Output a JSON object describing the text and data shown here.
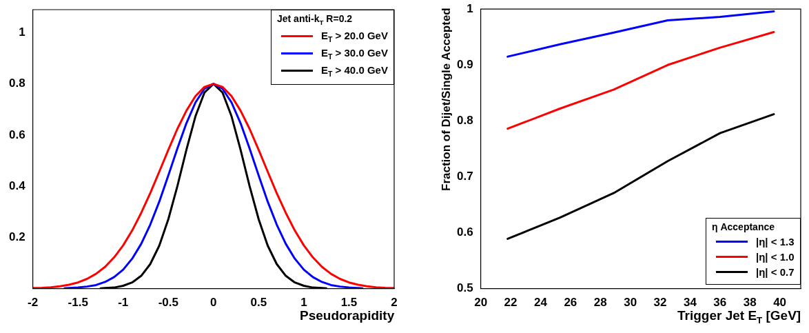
{
  "chart_data": [
    {
      "type": "line",
      "xlabel": "Pseudorapidity",
      "legend_title": "Jet anti-k$_{T}$ R=0.2",
      "legend": "top right",
      "grid": false,
      "xlim": [
        -2,
        2
      ],
      "xticks": [
        -2,
        -1.5,
        -1,
        -0.5,
        0,
        0.5,
        1,
        1.5,
        2
      ],
      "ylim": [
        0,
        1.09
      ],
      "yticks": [
        0.2,
        0.4,
        0.6,
        0.8,
        1
      ],
      "series": [
        {
          "name": "E$_{T}$ > 20.0 GeV",
          "color": "#ff0000",
          "x": [
            -2,
            -1.9,
            -1.8,
            -1.7,
            -1.6,
            -1.5,
            -1.4,
            -1.3,
            -1.2,
            -1.1,
            -1,
            -0.9,
            -0.8,
            -0.7,
            -0.6,
            -0.5,
            -0.4,
            -0.3,
            -0.2,
            -0.1,
            0,
            0.1,
            0.2,
            0.3,
            0.4,
            0.5,
            0.6,
            0.7,
            0.8,
            0.9,
            1,
            1.1,
            1.2,
            1.3,
            1.4,
            1.5,
            1.6,
            1.7,
            1.8,
            1.9,
            2
          ],
          "values": [
            0.002,
            0.003,
            0.005,
            0.009,
            0.015,
            0.024,
            0.038,
            0.058,
            0.085,
            0.122,
            0.169,
            0.227,
            0.296,
            0.373,
            0.457,
            0.542,
            0.624,
            0.695,
            0.752,
            0.788,
            0.8,
            0.788,
            0.752,
            0.695,
            0.624,
            0.542,
            0.457,
            0.373,
            0.296,
            0.227,
            0.169,
            0.122,
            0.085,
            0.058,
            0.038,
            0.024,
            0.015,
            0.009,
            0.005,
            0.003,
            0.002
          ]
        },
        {
          "name": "E$_{T}$ > 30.0 GeV",
          "color": "#0000ff",
          "x": [
            -1.65,
            -1.6,
            -1.5,
            -1.4,
            -1.3,
            -1.2,
            -1.1,
            -1,
            -0.9,
            -0.8,
            -0.7,
            -0.6,
            -0.5,
            -0.4,
            -0.3,
            -0.2,
            -0.1,
            0,
            0.1,
            0.2,
            0.3,
            0.4,
            0.5,
            0.6,
            0.7,
            0.8,
            0.9,
            1,
            1.1,
            1.2,
            1.3,
            1.4,
            1.5,
            1.6,
            1.65
          ],
          "values": [
            0.001,
            0.002,
            0.004,
            0.008,
            0.014,
            0.026,
            0.045,
            0.074,
            0.117,
            0.175,
            0.25,
            0.34,
            0.442,
            0.547,
            0.646,
            0.727,
            0.781,
            0.8,
            0.781,
            0.727,
            0.646,
            0.547,
            0.442,
            0.34,
            0.25,
            0.175,
            0.117,
            0.074,
            0.045,
            0.026,
            0.014,
            0.008,
            0.004,
            0.002,
            0.001
          ]
        },
        {
          "name": "E$_{T}$ > 40.0 GeV",
          "color": "#000000",
          "x": [
            -1.25,
            -1.2,
            -1.1,
            -1,
            -0.9,
            -0.8,
            -0.7,
            -0.6,
            -0.5,
            -0.4,
            -0.3,
            -0.2,
            -0.1,
            0,
            0.1,
            0.2,
            0.3,
            0.4,
            0.5,
            0.6,
            0.7,
            0.8,
            0.9,
            1,
            1.1,
            1.2,
            1.25
          ],
          "values": [
            0.001,
            0.002,
            0.004,
            0.011,
            0.024,
            0.05,
            0.096,
            0.168,
            0.271,
            0.4,
            0.542,
            0.673,
            0.766,
            0.8,
            0.766,
            0.673,
            0.542,
            0.4,
            0.271,
            0.168,
            0.096,
            0.05,
            0.024,
            0.011,
            0.004,
            0.002,
            0.001
          ]
        }
      ]
    },
    {
      "type": "line",
      "xlabel": "Trigger Jet E$_{T}$ [GeV]",
      "ylabel": "Fraction of Dijet/Single Accepted",
      "legend_title": "η Acceptance",
      "legend": "bottom right",
      "grid": false,
      "xlim": [
        20,
        41.4
      ],
      "xticks": [
        20,
        22,
        24,
        26,
        28,
        30,
        32,
        34,
        36,
        38,
        40
      ],
      "ylim": [
        0.5,
        1
      ],
      "yticks": [
        0.5,
        0.6,
        0.7,
        0.8,
        0.9,
        1
      ],
      "x": [
        21.8,
        25.3,
        28.9,
        32.5,
        36.0,
        39.6
      ],
      "series": [
        {
          "name": "|η| < 1.3",
          "color": "#0000ff",
          "values": [
            0.915,
            0.937,
            0.958,
            0.98,
            0.986,
            0.996
          ]
        },
        {
          "name": "|η| < 1.0",
          "color": "#ff0000",
          "values": [
            0.786,
            0.822,
            0.856,
            0.9,
            0.931,
            0.959
          ]
        },
        {
          "name": "|η| < 0.7",
          "color": "#000000",
          "values": [
            0.589,
            0.627,
            0.671,
            0.728,
            0.778,
            0.812
          ]
        }
      ]
    }
  ]
}
